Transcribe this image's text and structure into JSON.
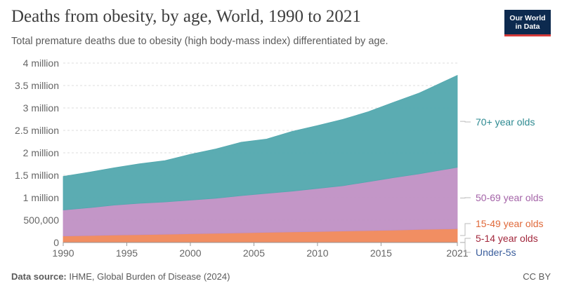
{
  "header": {
    "title": "Deaths from obesity, by age, World, 1990 to 2021",
    "subtitle": "Total premature deaths due to obesity (high body-mass index) differentiated by age.",
    "logo_line1": "Our World",
    "logo_line2": "in Data"
  },
  "footer": {
    "source_label": "Data source:",
    "source_text": "IHME, Global Burden of Disease (2024)",
    "license": "CC BY"
  },
  "chart_data": {
    "type": "area",
    "stacked": true,
    "title": "Deaths from obesity, by age, World, 1990 to 2021",
    "xlim": [
      1990,
      2021
    ],
    "ylim": [
      0,
      4000000
    ],
    "x_ticks": [
      {
        "value": 1990,
        "label": "1990"
      },
      {
        "value": 1995,
        "label": "1995"
      },
      {
        "value": 2000,
        "label": "2000"
      },
      {
        "value": 2005,
        "label": "2005"
      },
      {
        "value": 2010,
        "label": "2010"
      },
      {
        "value": 2015,
        "label": "2015"
      },
      {
        "value": 2021,
        "label": "2021"
      }
    ],
    "y_ticks": [
      {
        "value": 0,
        "label": "0"
      },
      {
        "value": 500000,
        "label": "500,000"
      },
      {
        "value": 1000000,
        "label": "1 million"
      },
      {
        "value": 1500000,
        "label": "1.5 million"
      },
      {
        "value": 2000000,
        "label": "2 million"
      },
      {
        "value": 2500000,
        "label": "2.5 million"
      },
      {
        "value": 3000000,
        "label": "3 million"
      },
      {
        "value": 3500000,
        "label": "3.5 million"
      },
      {
        "value": 4000000,
        "label": "4 million"
      }
    ],
    "x": [
      1990,
      1992,
      1994,
      1996,
      1998,
      2000,
      2002,
      2004,
      2006,
      2008,
      2010,
      2012,
      2014,
      2016,
      2018,
      2021
    ],
    "series": [
      {
        "name": "Under-5s",
        "color": "#3a5d9c",
        "values": [
          1000,
          1000,
          1000,
          1000,
          1000,
          1000,
          1000,
          1000,
          1000,
          1000,
          1000,
          1000,
          1000,
          1000,
          1000,
          1000
        ]
      },
      {
        "name": "5-14 year olds",
        "color": "#a2273c",
        "values": [
          4000,
          4000,
          4000,
          4000,
          4000,
          4500,
          4500,
          4500,
          5000,
          5000,
          5000,
          5000,
          5000,
          5500,
          5500,
          6000
        ]
      },
      {
        "name": "15-49 year olds",
        "color": "#f0885a",
        "values": [
          140000,
          150000,
          160000,
          170000,
          180000,
          190000,
          200000,
          210000,
          220000,
          230000,
          240000,
          250000,
          260000,
          270000,
          285000,
          300000
        ]
      },
      {
        "name": "50-69 year olds",
        "color": "#c090c4",
        "values": [
          580000,
          620000,
          670000,
          700000,
          720000,
          750000,
          780000,
          830000,
          870000,
          910000,
          960000,
          1010000,
          1090000,
          1170000,
          1240000,
          1370000
        ]
      },
      {
        "name": "70+ year olds",
        "color": "#52a8ae",
        "values": [
          750000,
          790000,
          830000,
          880000,
          920000,
          1020000,
          1100000,
          1190000,
          1210000,
          1330000,
          1400000,
          1480000,
          1560000,
          1680000,
          1800000,
          2050000
        ]
      }
    ]
  }
}
